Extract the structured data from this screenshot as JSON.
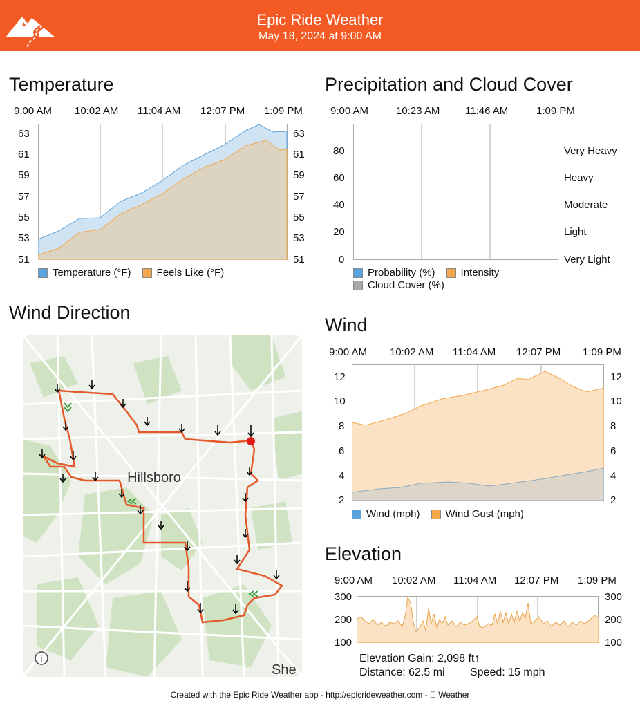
{
  "header": {
    "title": "Epic Ride Weather",
    "date": "May 18, 2024 at 9:00 AM",
    "accent_color": "#f45a24",
    "logo_icon": "mountain-road-logo-icon"
  },
  "temperature": {
    "title": "Temperature",
    "time_ticks": [
      "9:00 AM",
      "10:02 AM",
      "11:04 AM",
      "12:07 PM",
      "1:09 PM"
    ],
    "y_ticks": [
      "63",
      "61",
      "59",
      "57",
      "55",
      "53",
      "51"
    ],
    "legend": [
      {
        "label": "Temperature (°F)",
        "color": "#5ba3dc"
      },
      {
        "label": "Feels Like (°F)",
        "color": "#f4a64a"
      }
    ]
  },
  "precip": {
    "title": "Precipitation and Cloud Cover",
    "time_ticks": [
      "9:00 AM",
      "10:23 AM",
      "11:46 AM",
      "1:09 PM"
    ],
    "y_left": [
      "80",
      "60",
      "40",
      "20",
      "0"
    ],
    "y_right": [
      "Very Heavy",
      "Heavy",
      "Moderate",
      "Light",
      "Very Light"
    ],
    "legend": [
      {
        "label": "Probability (%)",
        "color": "#5ba3dc"
      },
      {
        "label": "Intensity",
        "color": "#f4a64a"
      },
      {
        "label": "Cloud Cover (%)",
        "color": "#a9a9a9"
      }
    ]
  },
  "wind_direction": {
    "title": "Wind Direction",
    "map_label": "Hillsboro",
    "map_edge_label": "She",
    "info_icon": "info-icon"
  },
  "wind": {
    "title": "Wind",
    "time_ticks": [
      "9:00 AM",
      "10:02 AM",
      "11:04 AM",
      "12:07 PM",
      "1:09 PM"
    ],
    "y_ticks": [
      "12",
      "10",
      "8",
      "6",
      "4",
      "2"
    ],
    "legend": [
      {
        "label": "Wind (mph)",
        "color": "#5ba3dc"
      },
      {
        "label": "Wind Gust (mph)",
        "color": "#f4a64a"
      }
    ]
  },
  "elevation": {
    "title": "Elevation",
    "time_ticks": [
      "9:00 AM",
      "10:02 AM",
      "11:04 AM",
      "12:07 PM",
      "1:09 PM"
    ],
    "y_ticks": [
      "300",
      "200",
      "100"
    ],
    "gain": "Elevation Gain: 2,098 ft↑",
    "distance": "Distance: 62.5 mi",
    "speed": "Speed: 15 mph"
  },
  "footer": {
    "text": "Created with the Epic Ride Weather app - http://epicrideweather.com -  Weather"
  }
}
